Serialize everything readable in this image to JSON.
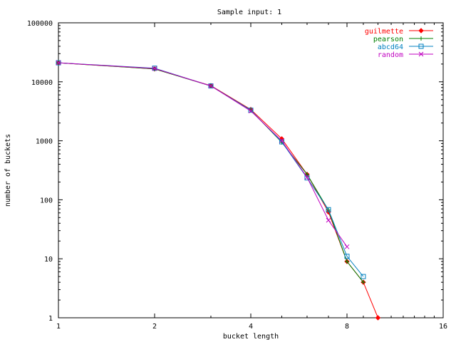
{
  "chart_data": {
    "type": "line",
    "title": "Sample input: 1",
    "xlabel": "bucket length",
    "ylabel": "number of buckets",
    "x_scale": "log2",
    "y_scale": "log10",
    "xlim": [
      1,
      16
    ],
    "ylim": [
      1,
      100000
    ],
    "x_ticks": [
      "1",
      "2",
      "4",
      "8",
      "16"
    ],
    "y_ticks": [
      "1",
      "10",
      "100",
      "1000",
      "10000",
      "100000"
    ],
    "grid": false,
    "legend_position": "top-right",
    "series": [
      {
        "name": "guilmette",
        "color": "#ff0000",
        "marker": "diamond",
        "points": [
          [
            1,
            21000
          ],
          [
            2,
            16500
          ],
          [
            3,
            8600
          ],
          [
            4,
            3400
          ],
          [
            5,
            1080
          ],
          [
            6,
            270
          ],
          [
            7,
            62
          ],
          [
            8,
            9
          ],
          [
            9,
            4
          ],
          [
            10,
            1
          ]
        ]
      },
      {
        "name": "pearson",
        "color": "#008000",
        "marker": "plus",
        "points": [
          [
            1,
            21000
          ],
          [
            2,
            16500
          ],
          [
            3,
            8500
          ],
          [
            4,
            3300
          ],
          [
            5,
            940
          ],
          [
            6,
            270
          ],
          [
            7,
            67
          ],
          [
            8,
            9
          ],
          [
            9,
            4
          ]
        ]
      },
      {
        "name": "abcd64",
        "color": "#0080c0",
        "marker": "square",
        "points": [
          [
            1,
            21000
          ],
          [
            2,
            17000
          ],
          [
            3,
            8500
          ],
          [
            4,
            3300
          ],
          [
            5,
            960
          ],
          [
            6,
            235
          ],
          [
            7,
            68
          ],
          [
            8,
            11
          ],
          [
            9,
            5
          ]
        ]
      },
      {
        "name": "random",
        "color": "#c000c0",
        "marker": "x",
        "points": [
          [
            1,
            21000
          ],
          [
            2,
            16800
          ],
          [
            3,
            8500
          ],
          [
            4,
            3200
          ],
          [
            5,
            1000
          ],
          [
            6,
            240
          ],
          [
            7,
            45
          ],
          [
            8,
            16
          ]
        ]
      }
    ]
  }
}
